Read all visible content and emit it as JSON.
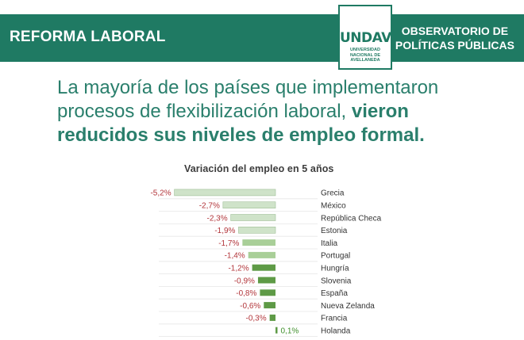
{
  "header": {
    "title": "REFORMA LABORAL",
    "org_line1": "OBSERVATORIO DE",
    "org_line2": "POLÍTICAS PÚBLICAS",
    "logo_text": "UNDAV",
    "logo_line1": "UNIVERSIDAD",
    "logo_line2": "NACIONAL DE",
    "logo_line3": "AVELLANEDA"
  },
  "headline": {
    "normal": "La mayoría de los países que implementaron procesos de flexibilización laboral, ",
    "bold": "vieron reducidos sus niveles de empleo formal."
  },
  "chart_data": {
    "type": "bar",
    "orientation": "horizontal",
    "title": "Variación del empleo en 5 años",
    "categories": [
      "Grecia",
      "México",
      "República Checa",
      "Estonia",
      "Italia",
      "Portugal",
      "Hungría",
      "Slovenia",
      "España",
      "Nueva Zelanda",
      "Francia",
      "Holanda"
    ],
    "values": [
      -5.2,
      -2.7,
      -2.3,
      -1.9,
      -1.7,
      -1.4,
      -1.2,
      -0.9,
      -0.8,
      -0.6,
      -0.3,
      0.1
    ],
    "value_labels": [
      "-5,2%",
      "-2,7%",
      "-2,3%",
      "-1,9%",
      "-1,7%",
      "-1,4%",
      "-1,2%",
      "-0,9%",
      "-0,8%",
      "-0,6%",
      "-0,3%",
      "0,1%"
    ],
    "colors": {
      "light": "#cfe3c9",
      "mid": "#a9cf98",
      "dark": "#5e9a46",
      "negative_label": "#b2353a",
      "positive_label": "#3f8f2b"
    }
  }
}
